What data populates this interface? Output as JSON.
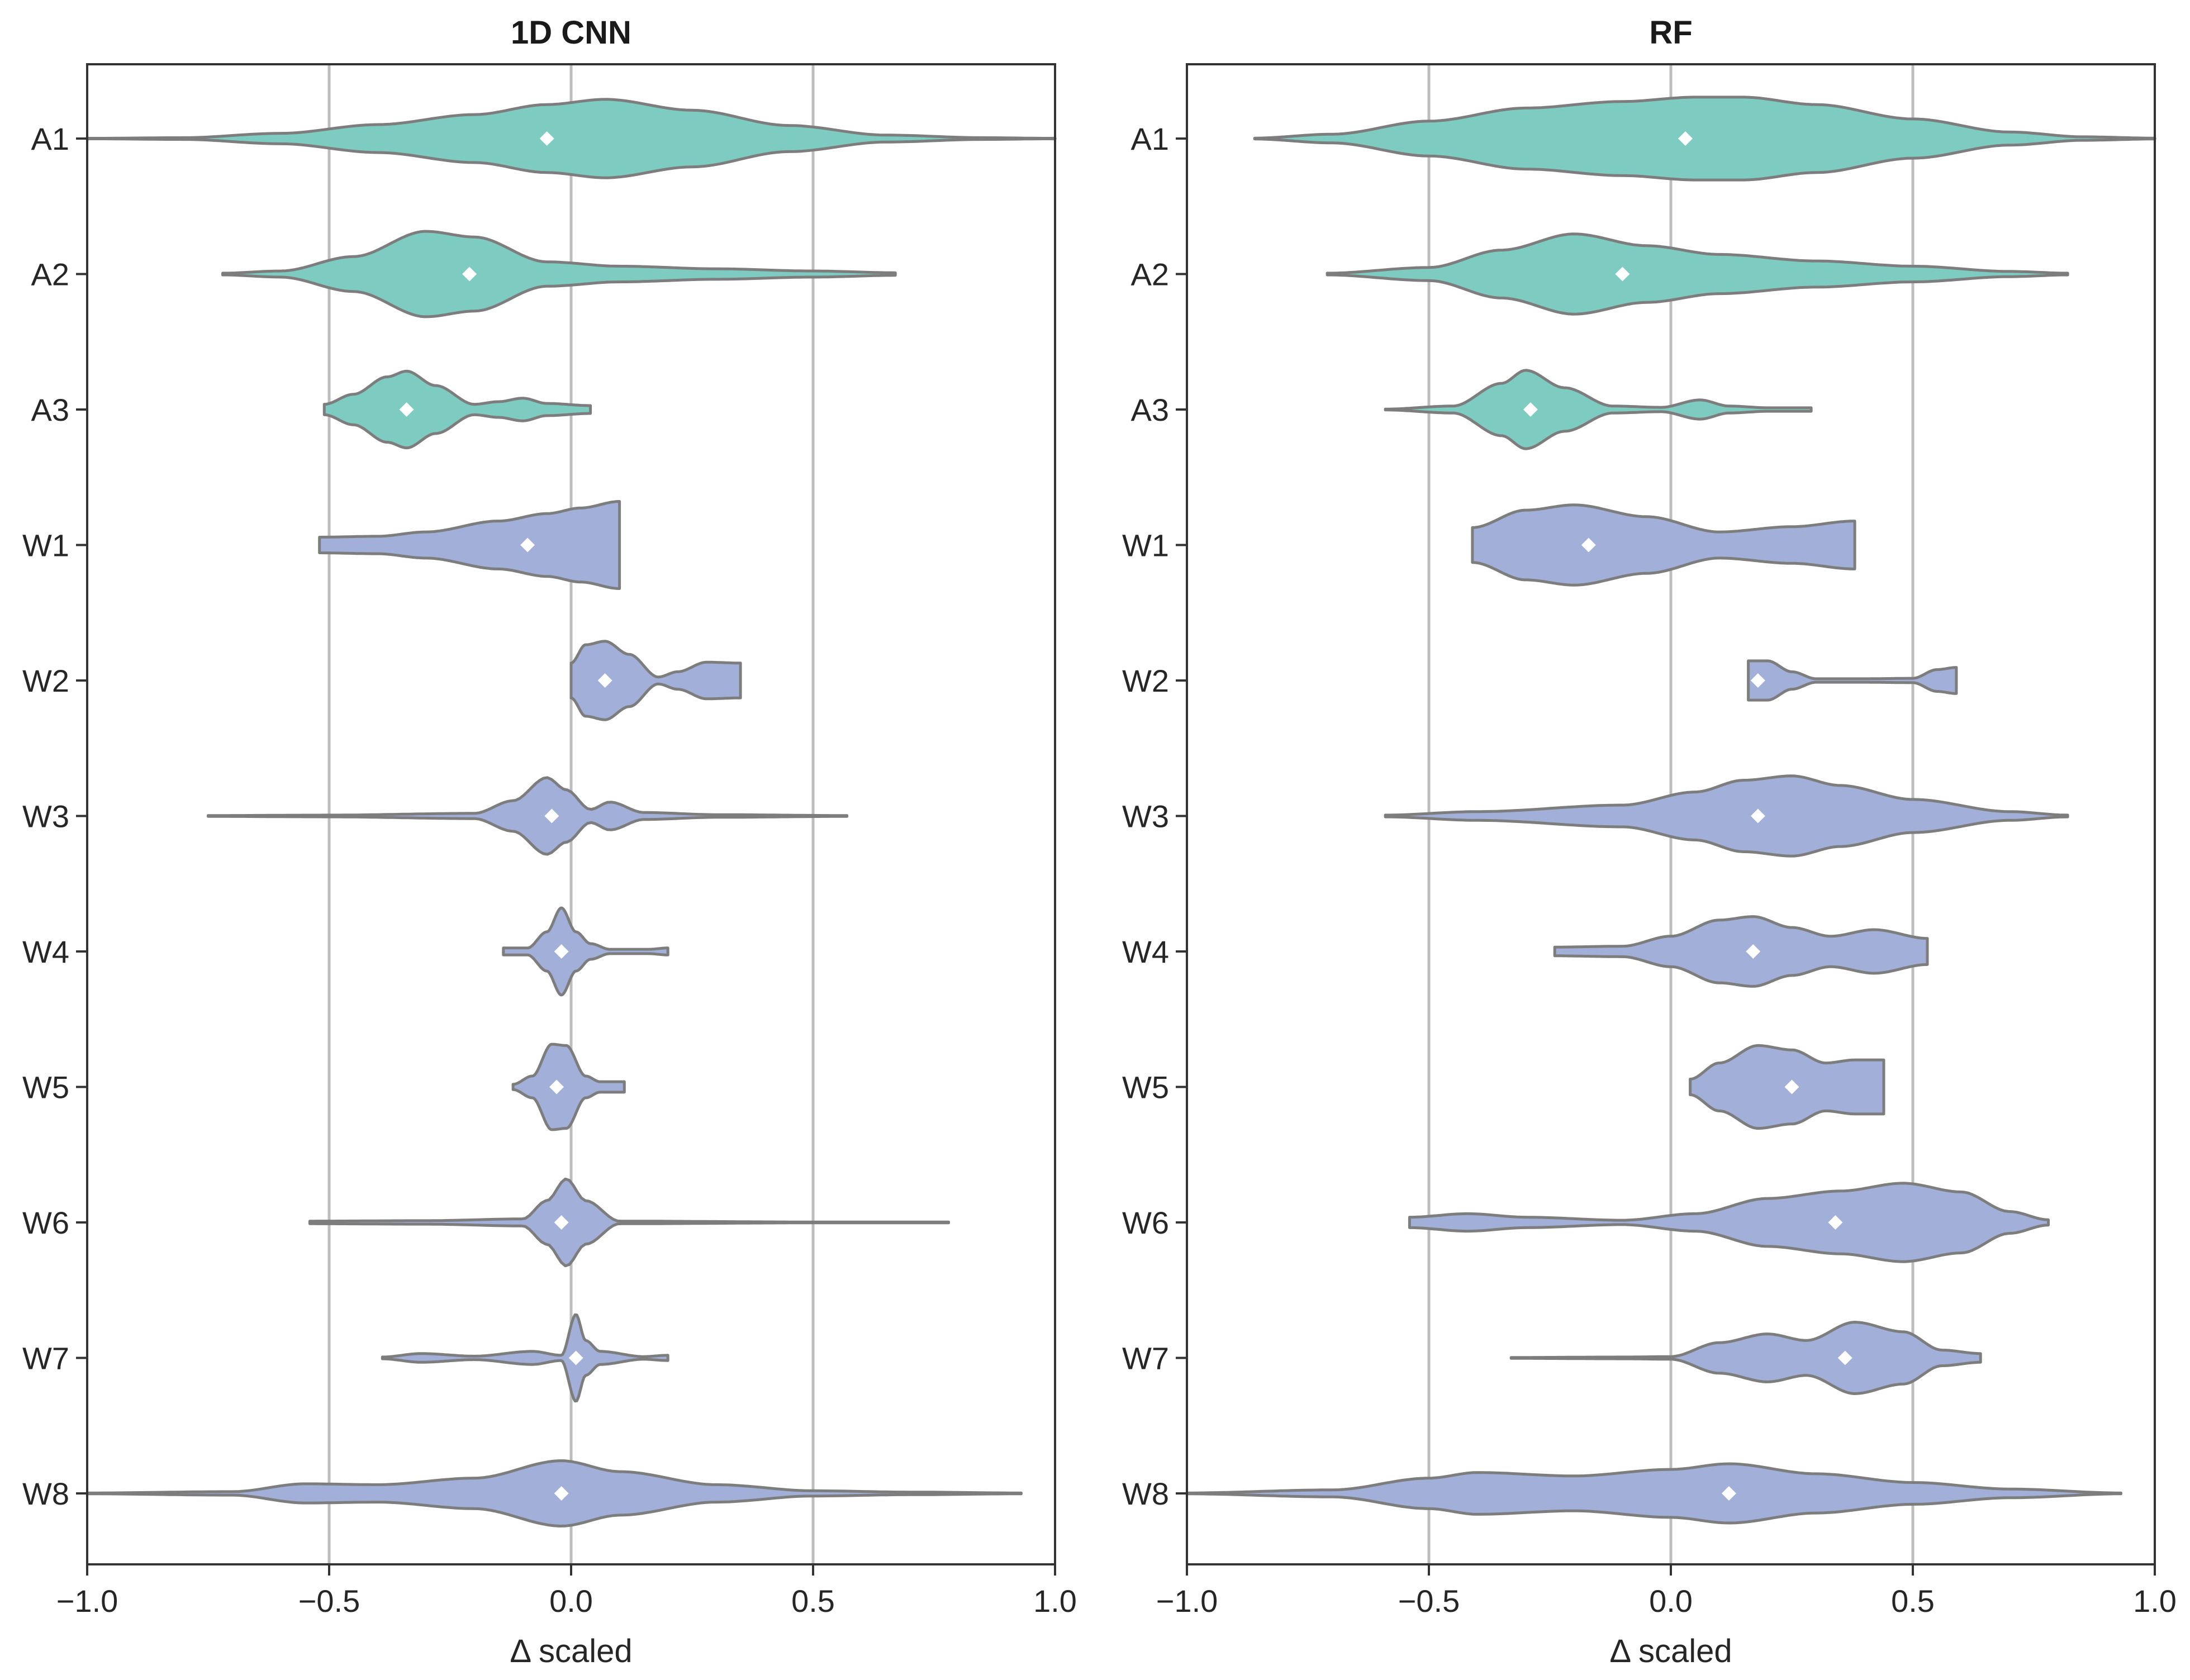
{
  "xlabel": "Δ scaled",
  "colors": {
    "A": "#7ecbc1",
    "W": "#a1afd9",
    "outline": "#7d7d7d",
    "mean_marker": "#ffffff",
    "grid": "#bdbdbd"
  },
  "chart_data": [
    {
      "type": "violin",
      "title": "1D CNN",
      "xlabel": "Δ scaled",
      "xlim": [
        -1.0,
        1.0
      ],
      "xticks": [
        "−1.0",
        "−0.5",
        "0.0",
        "0.5",
        "1.0"
      ],
      "xtick_values": [
        -1.0,
        -0.5,
        0.0,
        0.5,
        1.0
      ],
      "vertical_grid": [
        -0.5,
        0.0,
        0.5
      ],
      "categories": [
        "A1",
        "A2",
        "A3",
        "W1",
        "W2",
        "W3",
        "W4",
        "W5",
        "W6",
        "W7",
        "W8"
      ],
      "violins": [
        {
          "name": "A1",
          "group": "A",
          "min": -1.0,
          "max": 1.0,
          "mean": -0.05,
          "profile": [
            [
              -1.0,
              0.005
            ],
            [
              -0.8,
              0.02
            ],
            [
              -0.6,
              0.12
            ],
            [
              -0.4,
              0.32
            ],
            [
              -0.2,
              0.55
            ],
            [
              -0.05,
              0.78
            ],
            [
              0.07,
              0.9
            ],
            [
              0.25,
              0.65
            ],
            [
              0.45,
              0.3
            ],
            [
              0.65,
              0.08
            ],
            [
              0.85,
              0.02
            ],
            [
              1.0,
              0.005
            ]
          ]
        },
        {
          "name": "A2",
          "group": "A",
          "min": -0.72,
          "max": 0.67,
          "mean": -0.21,
          "profile": [
            [
              -0.72,
              0.02
            ],
            [
              -0.6,
              0.07
            ],
            [
              -0.45,
              0.4
            ],
            [
              -0.3,
              0.98
            ],
            [
              -0.2,
              0.85
            ],
            [
              -0.05,
              0.28
            ],
            [
              0.1,
              0.18
            ],
            [
              0.3,
              0.12
            ],
            [
              0.5,
              0.07
            ],
            [
              0.67,
              0.03
            ]
          ]
        },
        {
          "name": "A3",
          "group": "A",
          "min": -0.51,
          "max": 0.04,
          "mean": -0.34,
          "profile": [
            [
              -0.51,
              0.12
            ],
            [
              -0.45,
              0.35
            ],
            [
              -0.38,
              0.75
            ],
            [
              -0.34,
              0.88
            ],
            [
              -0.28,
              0.55
            ],
            [
              -0.2,
              0.12
            ],
            [
              -0.15,
              0.18
            ],
            [
              -0.1,
              0.26
            ],
            [
              -0.05,
              0.14
            ],
            [
              0.04,
              0.09
            ]
          ]
        },
        {
          "name": "W1",
          "group": "W",
          "min": -0.52,
          "max": 0.1,
          "mean": -0.09,
          "profile": [
            [
              -0.52,
              0.18
            ],
            [
              -0.4,
              0.2
            ],
            [
              -0.3,
              0.3
            ],
            [
              -0.15,
              0.55
            ],
            [
              -0.05,
              0.72
            ],
            [
              0.02,
              0.85
            ],
            [
              0.1,
              1.0
            ]
          ]
        },
        {
          "name": "W2",
          "group": "W",
          "min": 0.0,
          "max": 0.35,
          "mean": 0.07,
          "profile": [
            [
              0.0,
              0.4
            ],
            [
              0.03,
              0.82
            ],
            [
              0.07,
              0.9
            ],
            [
              0.12,
              0.6
            ],
            [
              0.18,
              0.08
            ],
            [
              0.22,
              0.2
            ],
            [
              0.28,
              0.42
            ],
            [
              0.35,
              0.4
            ]
          ]
        },
        {
          "name": "W3",
          "group": "W",
          "min": -0.75,
          "max": 0.57,
          "mean": -0.04,
          "profile": [
            [
              -0.75,
              0.01
            ],
            [
              -0.5,
              0.02
            ],
            [
              -0.2,
              0.06
            ],
            [
              -0.12,
              0.35
            ],
            [
              -0.05,
              0.88
            ],
            [
              -0.01,
              0.6
            ],
            [
              0.04,
              0.15
            ],
            [
              0.08,
              0.32
            ],
            [
              0.15,
              0.08
            ],
            [
              0.3,
              0.03
            ],
            [
              0.57,
              0.01
            ]
          ]
        },
        {
          "name": "W4",
          "group": "W",
          "min": -0.14,
          "max": 0.2,
          "mean": -0.02,
          "profile": [
            [
              -0.14,
              0.08
            ],
            [
              -0.09,
              0.08
            ],
            [
              -0.05,
              0.45
            ],
            [
              -0.02,
              1.0
            ],
            [
              0.01,
              0.45
            ],
            [
              0.04,
              0.18
            ],
            [
              0.08,
              0.05
            ],
            [
              0.16,
              0.05
            ],
            [
              0.2,
              0.08
            ]
          ]
        },
        {
          "name": "W5",
          "group": "W",
          "min": -0.12,
          "max": 0.11,
          "mean": -0.03,
          "profile": [
            [
              -0.12,
              0.06
            ],
            [
              -0.08,
              0.25
            ],
            [
              -0.04,
              0.98
            ],
            [
              -0.01,
              0.95
            ],
            [
              0.03,
              0.25
            ],
            [
              0.06,
              0.12
            ],
            [
              0.11,
              0.12
            ]
          ]
        },
        {
          "name": "W6",
          "group": "W",
          "min": -0.54,
          "max": 0.78,
          "mean": -0.02,
          "profile": [
            [
              -0.54,
              0.03
            ],
            [
              -0.3,
              0.04
            ],
            [
              -0.1,
              0.08
            ],
            [
              -0.05,
              0.5
            ],
            [
              -0.01,
              1.0
            ],
            [
              0.03,
              0.5
            ],
            [
              0.1,
              0.03
            ],
            [
              0.5,
              0.01
            ],
            [
              0.78,
              0.01
            ]
          ]
        },
        {
          "name": "W7",
          "group": "W",
          "min": -0.39,
          "max": 0.2,
          "mean": 0.01,
          "profile": [
            [
              -0.39,
              0.02
            ],
            [
              -0.31,
              0.1
            ],
            [
              -0.2,
              0.04
            ],
            [
              -0.08,
              0.15
            ],
            [
              -0.02,
              0.06
            ],
            [
              0.01,
              1.0
            ],
            [
              0.03,
              0.4
            ],
            [
              0.06,
              0.15
            ],
            [
              0.15,
              0.03
            ],
            [
              0.2,
              0.06
            ]
          ]
        },
        {
          "name": "W8",
          "group": "W",
          "min": -1.0,
          "max": 0.93,
          "mean": -0.02,
          "profile": [
            [
              -1.0,
              0.01
            ],
            [
              -0.7,
              0.04
            ],
            [
              -0.55,
              0.22
            ],
            [
              -0.4,
              0.2
            ],
            [
              -0.2,
              0.35
            ],
            [
              -0.02,
              0.75
            ],
            [
              0.1,
              0.5
            ],
            [
              0.3,
              0.2
            ],
            [
              0.5,
              0.06
            ],
            [
              0.7,
              0.03
            ],
            [
              0.93,
              0.01
            ]
          ]
        }
      ]
    },
    {
      "type": "violin",
      "title": "RF",
      "xlabel": "Δ scaled",
      "xlim": [
        -1.0,
        1.0
      ],
      "xticks": [
        "−1.0",
        "−0.5",
        "0.0",
        "0.5",
        "1.0"
      ],
      "xtick_values": [
        -1.0,
        -0.5,
        0.0,
        0.5,
        1.0
      ],
      "vertical_grid": [
        -0.5,
        0.0,
        0.5
      ],
      "categories": [
        "A1",
        "A2",
        "A3",
        "W1",
        "W2",
        "W3",
        "W4",
        "W5",
        "W6",
        "W7",
        "W8"
      ],
      "violins": [
        {
          "name": "A1",
          "group": "A",
          "min": -0.86,
          "max": 1.0,
          "mean": 0.03,
          "profile": [
            [
              -0.86,
              0.01
            ],
            [
              -0.7,
              0.1
            ],
            [
              -0.5,
              0.4
            ],
            [
              -0.3,
              0.7
            ],
            [
              -0.1,
              0.85
            ],
            [
              0.05,
              0.95
            ],
            [
              0.15,
              0.95
            ],
            [
              0.3,
              0.78
            ],
            [
              0.5,
              0.45
            ],
            [
              0.7,
              0.15
            ],
            [
              0.85,
              0.04
            ],
            [
              1.0,
              0.01
            ]
          ]
        },
        {
          "name": "A2",
          "group": "A",
          "min": -0.71,
          "max": 0.82,
          "mean": -0.1,
          "profile": [
            [
              -0.71,
              0.02
            ],
            [
              -0.5,
              0.15
            ],
            [
              -0.35,
              0.55
            ],
            [
              -0.2,
              0.92
            ],
            [
              -0.05,
              0.65
            ],
            [
              0.1,
              0.45
            ],
            [
              0.3,
              0.3
            ],
            [
              0.5,
              0.18
            ],
            [
              0.7,
              0.06
            ],
            [
              0.82,
              0.02
            ]
          ]
        },
        {
          "name": "A3",
          "group": "A",
          "min": -0.59,
          "max": 0.29,
          "mean": -0.29,
          "profile": [
            [
              -0.59,
              0.01
            ],
            [
              -0.45,
              0.08
            ],
            [
              -0.35,
              0.6
            ],
            [
              -0.3,
              0.9
            ],
            [
              -0.22,
              0.5
            ],
            [
              -0.12,
              0.08
            ],
            [
              -0.02,
              0.05
            ],
            [
              0.06,
              0.22
            ],
            [
              0.12,
              0.08
            ],
            [
              0.2,
              0.04
            ],
            [
              0.29,
              0.04
            ]
          ]
        },
        {
          "name": "W1",
          "group": "W",
          "min": -0.41,
          "max": 0.38,
          "mean": -0.17,
          "profile": [
            [
              -0.41,
              0.4
            ],
            [
              -0.3,
              0.8
            ],
            [
              -0.2,
              0.92
            ],
            [
              -0.05,
              0.65
            ],
            [
              0.1,
              0.3
            ],
            [
              0.25,
              0.42
            ],
            [
              0.38,
              0.55
            ]
          ]
        },
        {
          "name": "W2",
          "group": "W",
          "min": 0.16,
          "max": 0.59,
          "mean": 0.18,
          "profile": [
            [
              0.16,
              0.45
            ],
            [
              0.2,
              0.45
            ],
            [
              0.25,
              0.2
            ],
            [
              0.3,
              0.04
            ],
            [
              0.4,
              0.04
            ],
            [
              0.5,
              0.05
            ],
            [
              0.55,
              0.25
            ],
            [
              0.59,
              0.3
            ]
          ]
        },
        {
          "name": "W3",
          "group": "W",
          "min": -0.59,
          "max": 0.82,
          "mean": 0.18,
          "profile": [
            [
              -0.59,
              0.02
            ],
            [
              -0.4,
              0.1
            ],
            [
              -0.1,
              0.25
            ],
            [
              0.05,
              0.55
            ],
            [
              0.15,
              0.82
            ],
            [
              0.25,
              0.92
            ],
            [
              0.35,
              0.7
            ],
            [
              0.5,
              0.38
            ],
            [
              0.7,
              0.1
            ],
            [
              0.82,
              0.02
            ]
          ]
        },
        {
          "name": "W4",
          "group": "W",
          "min": -0.24,
          "max": 0.53,
          "mean": 0.17,
          "profile": [
            [
              -0.24,
              0.1
            ],
            [
              -0.1,
              0.12
            ],
            [
              0.0,
              0.35
            ],
            [
              0.1,
              0.72
            ],
            [
              0.17,
              0.8
            ],
            [
              0.25,
              0.55
            ],
            [
              0.33,
              0.35
            ],
            [
              0.42,
              0.5
            ],
            [
              0.53,
              0.3
            ]
          ]
        },
        {
          "name": "W5",
          "group": "W",
          "min": 0.04,
          "max": 0.44,
          "mean": 0.25,
          "profile": [
            [
              0.04,
              0.18
            ],
            [
              0.1,
              0.55
            ],
            [
              0.18,
              0.95
            ],
            [
              0.25,
              0.85
            ],
            [
              0.32,
              0.55
            ],
            [
              0.38,
              0.62
            ],
            [
              0.44,
              0.62
            ]
          ]
        },
        {
          "name": "W6",
          "group": "W",
          "min": -0.54,
          "max": 0.78,
          "mean": 0.34,
          "profile": [
            [
              -0.54,
              0.12
            ],
            [
              -0.42,
              0.2
            ],
            [
              -0.3,
              0.12
            ],
            [
              -0.1,
              0.05
            ],
            [
              0.05,
              0.2
            ],
            [
              0.2,
              0.55
            ],
            [
              0.35,
              0.72
            ],
            [
              0.48,
              0.9
            ],
            [
              0.6,
              0.7
            ],
            [
              0.7,
              0.25
            ],
            [
              0.78,
              0.06
            ]
          ]
        },
        {
          "name": "W7",
          "group": "W",
          "min": -0.33,
          "max": 0.64,
          "mean": 0.36,
          "profile": [
            [
              -0.33,
              0.01
            ],
            [
              -0.1,
              0.02
            ],
            [
              0.0,
              0.03
            ],
            [
              0.1,
              0.35
            ],
            [
              0.2,
              0.55
            ],
            [
              0.28,
              0.4
            ],
            [
              0.38,
              0.82
            ],
            [
              0.48,
              0.6
            ],
            [
              0.56,
              0.18
            ],
            [
              0.64,
              0.1
            ]
          ]
        },
        {
          "name": "W8",
          "group": "W",
          "min": -1.0,
          "max": 0.93,
          "mean": 0.12,
          "profile": [
            [
              -1.0,
              0.01
            ],
            [
              -0.7,
              0.08
            ],
            [
              -0.5,
              0.35
            ],
            [
              -0.4,
              0.48
            ],
            [
              -0.2,
              0.4
            ],
            [
              0.0,
              0.55
            ],
            [
              0.12,
              0.68
            ],
            [
              0.3,
              0.45
            ],
            [
              0.5,
              0.25
            ],
            [
              0.7,
              0.1
            ],
            [
              0.93,
              0.01
            ]
          ]
        }
      ]
    }
  ]
}
